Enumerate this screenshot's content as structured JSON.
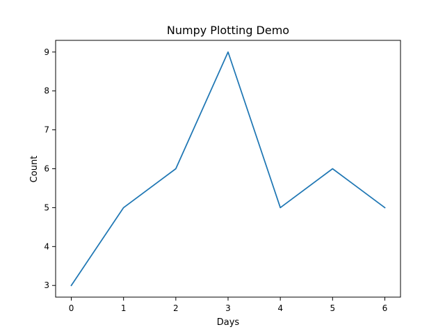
{
  "chart_data": {
    "type": "line",
    "title": "Numpy Plotting Demo",
    "xlabel": "Days",
    "ylabel": "Count",
    "x": [
      0,
      1,
      2,
      3,
      4,
      5,
      6
    ],
    "series": [
      {
        "values": [
          3,
          5,
          6,
          9,
          5,
          6,
          5
        ],
        "color": "#1f77b4"
      }
    ],
    "xlim": [
      -0.3,
      6.3
    ],
    "ylim": [
      2.7,
      9.3
    ],
    "xticks": [
      0,
      1,
      2,
      3,
      4,
      5,
      6
    ],
    "yticks": [
      3,
      4,
      5,
      6,
      7,
      8,
      9
    ],
    "grid": false,
    "legend": false
  }
}
